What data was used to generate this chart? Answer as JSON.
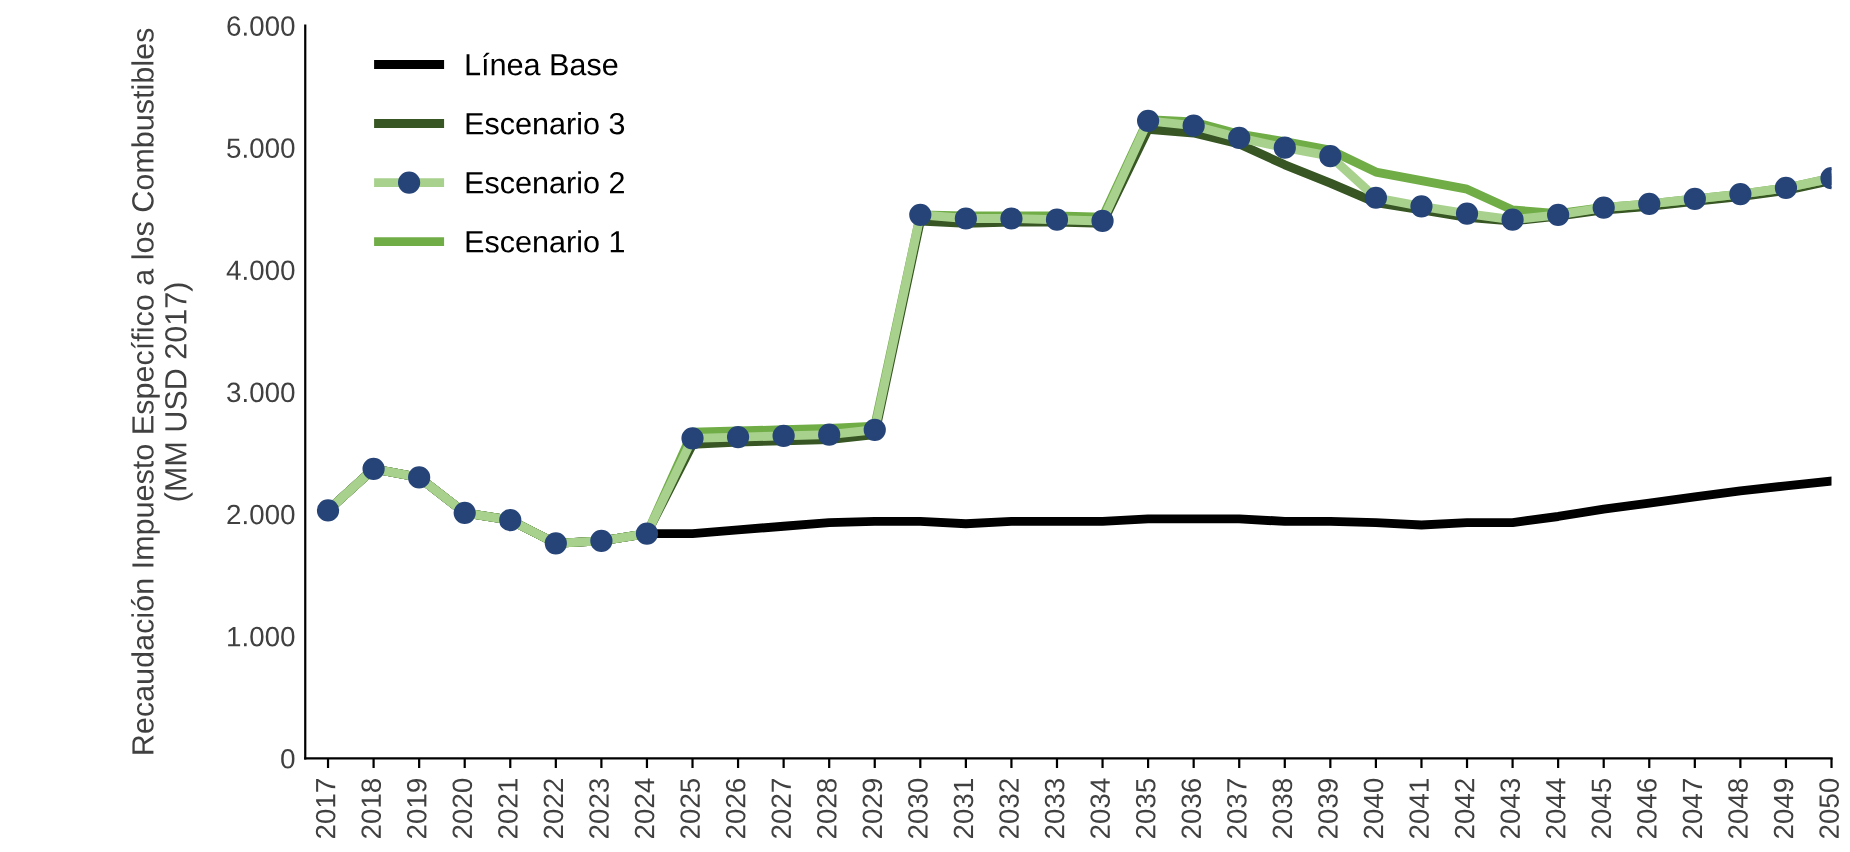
{
  "chart_data": {
    "type": "line",
    "ylabel": "Recaudación Impuesto Específico a los Combustibles\n(MM USD 2017)",
    "categories": [
      "2017",
      "2018",
      "2019",
      "2020",
      "2021",
      "2022",
      "2023",
      "2024",
      "2025",
      "2026",
      "2027",
      "2028",
      "2029",
      "2030",
      "2031",
      "2032",
      "2033",
      "2034",
      "2035",
      "2036",
      "2037",
      "2038",
      "2039",
      "2040",
      "2041",
      "2042",
      "2043",
      "2044",
      "2045",
      "2046",
      "2047",
      "2048",
      "2049",
      "2050"
    ],
    "series": [
      {
        "name": "Línea Base",
        "color": "#000000",
        "values": [
          2030,
          2370,
          2300,
          2010,
          1950,
          1760,
          1780,
          1840,
          1840,
          1870,
          1900,
          1930,
          1940,
          1940,
          1920,
          1940,
          1940,
          1940,
          1960,
          1960,
          1960,
          1940,
          1940,
          1930,
          1910,
          1930,
          1930,
          1980,
          2040,
          2090,
          2140,
          2190,
          2230,
          2270
        ]
      },
      {
        "name": "Escenario 3",
        "color": "#375623",
        "values": [
          2030,
          2370,
          2300,
          2010,
          1950,
          1760,
          1780,
          1840,
          2570,
          2590,
          2600,
          2610,
          2650,
          4400,
          4380,
          4390,
          4390,
          4380,
          5150,
          5120,
          5030,
          4860,
          4710,
          4550,
          4490,
          4430,
          4400,
          4440,
          4490,
          4520,
          4560,
          4600,
          4650,
          4730
        ]
      },
      {
        "name": "Escenario 2",
        "color": "#264478",
        "marker": "circle",
        "values": [
          2030,
          2370,
          2300,
          2010,
          1950,
          1760,
          1780,
          1840,
          2620,
          2630,
          2640,
          2650,
          2690,
          4450,
          4420,
          4420,
          4410,
          4400,
          5220,
          5180,
          5080,
          5000,
          4930,
          4590,
          4520,
          4460,
          4410,
          4450,
          4510,
          4540,
          4580,
          4620,
          4670,
          4750
        ]
      },
      {
        "name": "Escenario 1",
        "color": "#70ad47",
        "values": [
          2030,
          2370,
          2300,
          2010,
          1950,
          1760,
          1780,
          1840,
          2670,
          2680,
          2690,
          2700,
          2720,
          4450,
          4440,
          4440,
          4440,
          4430,
          5230,
          5210,
          5110,
          5050,
          4980,
          4800,
          4730,
          4660,
          4490,
          4460,
          4510,
          4540,
          4580,
          4620,
          4670,
          4750
        ]
      }
    ],
    "ylim": [
      0,
      6000
    ],
    "yticks": [
      {
        "value": 0,
        "label": "0"
      },
      {
        "value": 1000,
        "label": "1.000"
      },
      {
        "value": 2000,
        "label": "2.000"
      },
      {
        "value": 3000,
        "label": "3.000"
      },
      {
        "value": 4000,
        "label": "4.000"
      },
      {
        "value": 5000,
        "label": "5.000"
      },
      {
        "value": 6000,
        "label": "6.000"
      }
    ],
    "legend": "top left"
  }
}
